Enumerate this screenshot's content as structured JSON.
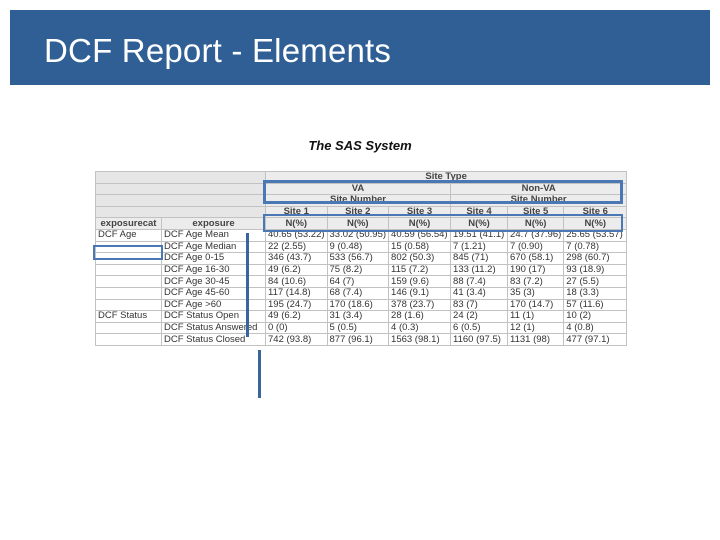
{
  "slide": {
    "title": "DCF Report - Elements",
    "colors": {
      "title_bar": "#2f5f94",
      "highlight": "#4a78b5"
    }
  },
  "report": {
    "system_title": "The SAS System",
    "site_type_label": "Site Type",
    "site_types": [
      "VA",
      "Non-VA"
    ],
    "site_number_label": "Site Number",
    "sites": [
      "Site 1",
      "Site 2",
      "Site 3",
      "Site 4",
      "Site 5",
      "Site 6"
    ],
    "col_headers": {
      "exposurecat": "exposurecat",
      "exposure": "exposure",
      "nperc": "N(%)"
    },
    "rows": [
      {
        "cat": "DCF Age",
        "exp": "DCF Age Mean",
        "vals": [
          "40.65 (53.22)",
          "33.02 (50.95)",
          "40.59 (56.54)",
          "19.51 (41.1)",
          "24.7 (37.96)",
          "25.65 (53.57)"
        ]
      },
      {
        "cat": "",
        "exp": "DCF Age Median",
        "vals": [
          "22 (2.55)",
          "9 (0.48)",
          "15 (0.58)",
          "7 (1.21)",
          "7 (0.90)",
          "7 (0.78)"
        ]
      },
      {
        "cat": "",
        "exp": "DCF Age 0-15",
        "vals": [
          "346 (43.7)",
          "533 (56.7)",
          "802 (50.3)",
          "845 (71)",
          "670 (58.1)",
          "298 (60.7)"
        ]
      },
      {
        "cat": "",
        "exp": "DCF Age 16-30",
        "vals": [
          "49 (6.2)",
          "75 (8.2)",
          "115 (7.2)",
          "133 (11.2)",
          "190 (17)",
          "93 (18.9)"
        ]
      },
      {
        "cat": "",
        "exp": "DCF Age 30-45",
        "vals": [
          "84 (10.6)",
          "64 (7)",
          "159 (9.6)",
          "88 (7.4)",
          "83 (7.2)",
          "27 (5.5)"
        ]
      },
      {
        "cat": "",
        "exp": "DCF Age 45-60",
        "vals": [
          "117 (14.8)",
          "68 (7.4)",
          "146 (9.1)",
          "41 (3.4)",
          "35 (3)",
          "18 (3.3)"
        ]
      },
      {
        "cat": "",
        "exp": "DCF Age >60",
        "vals": [
          "195 (24.7)",
          "170 (18.6)",
          "378 (23.7)",
          "83 (7)",
          "170 (14.7)",
          "57 (11.6)"
        ]
      },
      {
        "cat": "DCF Status",
        "exp": "DCF Status Open",
        "vals": [
          "49 (6.2)",
          "31 (3.4)",
          "28 (1.6)",
          "24 (2)",
          "11 (1)",
          "10 (2)"
        ]
      },
      {
        "cat": "",
        "exp": "DCF Status Answered",
        "vals": [
          "0 (0)",
          "5 (0.5)",
          "4 (0.3)",
          "6 (0.5)",
          "12 (1)",
          "4 (0.8)"
        ]
      },
      {
        "cat": "",
        "exp": "DCF Status Closed",
        "vals": [
          "742 (93.8)",
          "877 (96.1)",
          "1563 (98.1)",
          "1160 (97.5)",
          "1131 (98)",
          "477 (97.1)"
        ]
      }
    ]
  }
}
